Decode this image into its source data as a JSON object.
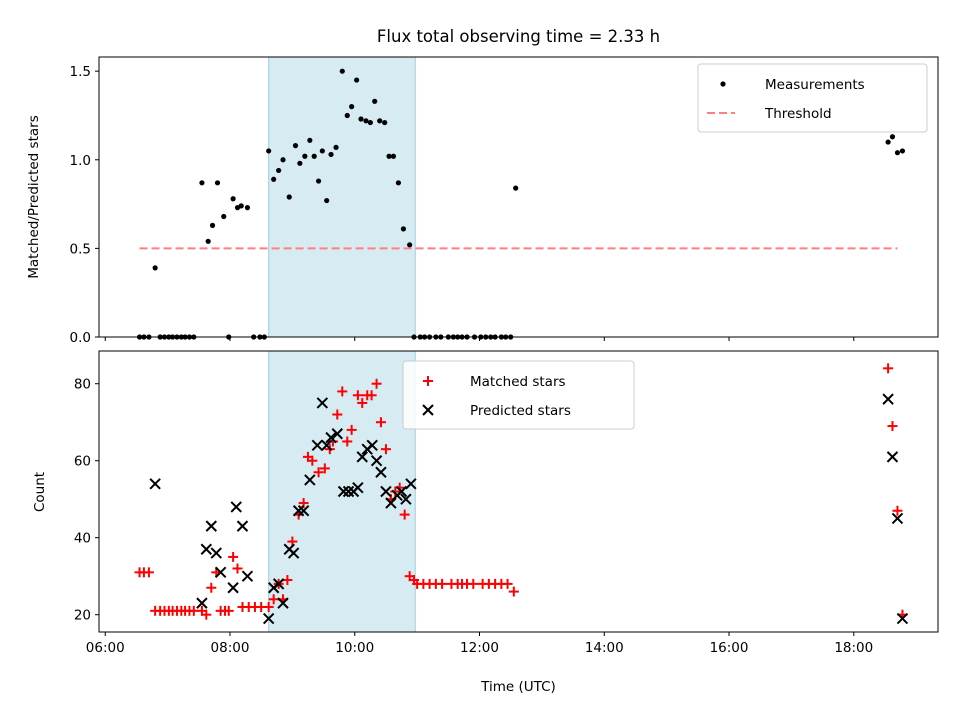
{
  "title": "Flux total observing time = 2.33 h",
  "chart_data": [
    {
      "type": "scatter",
      "ylabel": "Matched/Predicted stars",
      "ylim": [
        0,
        1.58
      ],
      "yticks": [
        0.0,
        0.5,
        1.0,
        1.5
      ],
      "ytick_labels": [
        "0.0",
        "0.5",
        "1.0",
        "1.5"
      ],
      "xlim": [
        5.9,
        19.35
      ],
      "shaded_region": [
        8.62,
        10.97
      ],
      "legend_position": "top-right",
      "series": [
        {
          "name": "Measurements",
          "kind": "dot",
          "x": [
            6.55,
            6.62,
            6.7,
            6.8,
            6.88,
            6.95,
            7.02,
            7.08,
            7.15,
            7.22,
            7.28,
            7.35,
            7.42,
            7.55,
            7.65,
            7.72,
            7.8,
            7.9,
            7.98,
            8.05,
            8.12,
            8.18,
            8.28,
            8.38,
            8.48,
            8.55,
            8.62,
            8.7,
            8.78,
            8.85,
            8.95,
            9.05,
            9.12,
            9.2,
            9.28,
            9.35,
            9.42,
            9.48,
            9.55,
            9.62,
            9.7,
            9.8,
            9.88,
            9.95,
            10.03,
            10.1,
            10.18,
            10.25,
            10.32,
            10.4,
            10.48,
            10.55,
            10.62,
            10.7,
            10.78,
            10.88,
            10.95,
            11.05,
            11.12,
            11.2,
            11.3,
            11.38,
            11.5,
            11.58,
            11.65,
            11.72,
            11.8,
            11.92,
            12.02,
            12.1,
            12.18,
            12.25,
            12.35,
            12.42,
            12.5,
            12.58,
            18.55,
            18.62,
            18.7,
            18.78
          ],
          "y": [
            0,
            0,
            0,
            0.39,
            0,
            0,
            0,
            0,
            0,
            0,
            0,
            0,
            0,
            0.87,
            0.54,
            0.63,
            0.87,
            0.68,
            0,
            0.78,
            0.73,
            0.74,
            0.73,
            0,
            0,
            0,
            1.05,
            0.89,
            0.94,
            1.0,
            0.79,
            1.08,
            0.98,
            1.02,
            1.11,
            1.02,
            0.88,
            1.05,
            0.77,
            1.03,
            1.07,
            1.5,
            1.25,
            1.3,
            1.45,
            1.23,
            1.22,
            1.21,
            1.33,
            1.22,
            1.21,
            1.02,
            1.02,
            0.87,
            0.61,
            0.52,
            0,
            0,
            0,
            0,
            0,
            0,
            0,
            0,
            0,
            0,
            0,
            0,
            0,
            0,
            0,
            0,
            0,
            0,
            0,
            0.84,
            1.1,
            1.13,
            1.04,
            1.05
          ]
        },
        {
          "name": "Threshold",
          "kind": "dashed-line",
          "color": "#ff7f7f",
          "x": [
            6.55,
            18.7
          ],
          "y": [
            0.5,
            0.5
          ]
        }
      ]
    },
    {
      "type": "scatter",
      "xlabel": "Time (UTC)",
      "ylabel": "Count",
      "ylim": [
        15.5,
        88.5
      ],
      "yticks": [
        20,
        40,
        60,
        80
      ],
      "ytick_labels": [
        "20",
        "40",
        "60",
        "80"
      ],
      "xlim": [
        5.9,
        19.35
      ],
      "xticks": [
        6,
        8,
        10,
        12,
        14,
        16,
        18
      ],
      "xtick_labels": [
        "06:00",
        "08:00",
        "10:00",
        "12:00",
        "14:00",
        "16:00",
        "18:00"
      ],
      "shaded_region": [
        8.62,
        10.97
      ],
      "legend_position": "top-center",
      "series": [
        {
          "name": "Matched stars",
          "kind": "plus",
          "color": "#ff0000",
          "x": [
            6.55,
            6.62,
            6.7,
            6.8,
            6.88,
            6.95,
            7.02,
            7.08,
            7.15,
            7.22,
            7.28,
            7.35,
            7.42,
            7.55,
            7.62,
            7.7,
            7.78,
            7.85,
            7.92,
            7.98,
            8.05,
            8.12,
            8.2,
            8.3,
            8.4,
            8.5,
            8.62,
            8.7,
            8.78,
            8.85,
            8.92,
            9.0,
            9.1,
            9.18,
            9.25,
            9.32,
            9.42,
            9.52,
            9.6,
            9.65,
            9.72,
            9.8,
            9.88,
            9.95,
            10.05,
            10.12,
            10.2,
            10.27,
            10.35,
            10.42,
            10.5,
            10.58,
            10.65,
            10.72,
            10.8,
            10.88,
            10.95,
            11.0,
            11.1,
            11.2,
            11.3,
            11.4,
            11.55,
            11.65,
            11.72,
            11.8,
            11.9,
            12.05,
            12.15,
            12.25,
            12.35,
            12.45,
            12.55,
            18.55,
            18.62,
            18.7,
            18.78
          ],
          "y": [
            31,
            31,
            31,
            21,
            21,
            21,
            21,
            21,
            21,
            21,
            21,
            21,
            21,
            21,
            20,
            27,
            31,
            21,
            21,
            21,
            35,
            32,
            22,
            22,
            22,
            22,
            22,
            24,
            28,
            24,
            29,
            39,
            46,
            49,
            61,
            60,
            57,
            58,
            63,
            65,
            72,
            78,
            65,
            68,
            77,
            75,
            77,
            77,
            80,
            70,
            63,
            50,
            52,
            53,
            46,
            30,
            29,
            28,
            28,
            28,
            28,
            28,
            28,
            28,
            28,
            28,
            28,
            28,
            28,
            28,
            28,
            28,
            26,
            84,
            69,
            47,
            20
          ]
        },
        {
          "name": "Predicted stars",
          "kind": "cross",
          "color": "#000000",
          "x": [
            6.8,
            7.55,
            7.62,
            7.7,
            7.78,
            7.85,
            8.05,
            8.1,
            8.2,
            8.28,
            8.62,
            8.7,
            8.78,
            8.85,
            8.95,
            9.02,
            9.1,
            9.18,
            9.28,
            9.4,
            9.48,
            9.55,
            9.62,
            9.72,
            9.82,
            9.9,
            9.98,
            10.05,
            10.12,
            10.2,
            10.28,
            10.35,
            10.42,
            10.5,
            10.58,
            10.68,
            10.75,
            10.82,
            10.9,
            18.55,
            18.62,
            18.7,
            18.78
          ],
          "y": [
            54,
            23,
            37,
            43,
            36,
            31,
            27,
            48,
            43,
            30,
            19,
            27,
            28,
            23,
            37,
            36,
            47,
            47,
            55,
            64,
            75,
            64,
            66,
            67,
            52,
            52,
            52,
            53,
            61,
            63,
            64,
            60,
            57,
            52,
            49,
            51,
            52,
            50,
            54,
            76,
            61,
            45,
            19
          ]
        }
      ]
    }
  ]
}
